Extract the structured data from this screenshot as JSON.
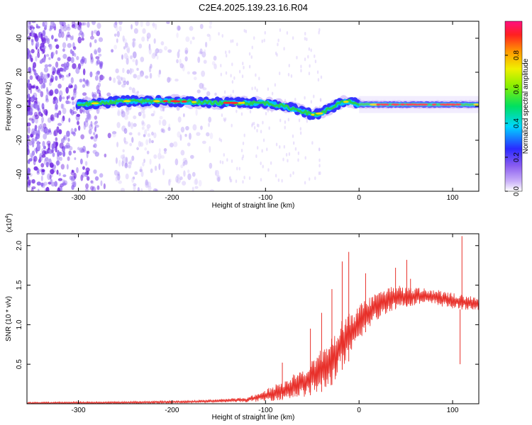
{
  "title": "C2E4.2025.139.23.16.R04",
  "colors": {
    "snr_line": "#e8302a",
    "track_core": "#ff2a2a",
    "track_mid": "#2ad24a",
    "track_outer": "#2a2aff",
    "noise": "#8a5cf0",
    "background": "#ffffff"
  },
  "chart_data": [
    {
      "type": "heatmap",
      "name": "spectrogram",
      "xlabel": "Height of straight line (km)",
      "ylabel": "Frequency (Hz)",
      "xlim": [
        -355,
        128
      ],
      "ylim": [
        -50,
        50
      ],
      "x_ticks": [
        -300,
        -200,
        -100,
        0,
        100
      ],
      "x_tick_labels": [
        "-300",
        "-200",
        "-100",
        "0",
        "100"
      ],
      "y_ticks": [
        -40,
        -20,
        0,
        20,
        40
      ],
      "y_tick_labels": [
        "-40",
        "-20",
        "0",
        "20",
        "40"
      ],
      "colorbar": {
        "label": "Normalized spectral amplitude",
        "range": [
          0,
          1
        ],
        "ticks": [
          0.0,
          0.2,
          0.4,
          0.6,
          0.8
        ],
        "tick_labels": [
          "0.0",
          "0.2",
          "0.4",
          "0.6",
          "0.8"
        ],
        "colormap": "rainbow"
      },
      "track": {
        "x": [
          -300,
          -250,
          -200,
          -150,
          -100,
          -80,
          -60,
          -50,
          -40,
          -30,
          -20,
          -10,
          0,
          20,
          40,
          60,
          80,
          100,
          128
        ],
        "frequency": [
          1,
          3,
          3,
          2,
          2,
          0,
          -3,
          -5,
          -4,
          -1,
          2,
          3,
          1,
          1,
          1,
          1,
          1,
          1,
          1
        ]
      },
      "noise_band_x": [
        -355,
        -150
      ],
      "grid": false
    },
    {
      "type": "line",
      "name": "snr",
      "xlabel": "Height of straight line (km)",
      "ylabel": "SNR (10 * v/v)",
      "multiplier_label": "(x10",
      "multiplier_exp": "4",
      "multiplier_close": ")",
      "xlim": [
        -355,
        128
      ],
      "ylim": [
        0,
        2.15
      ],
      "x_ticks": [
        -300,
        -200,
        -100,
        0,
        100
      ],
      "x_tick_labels": [
        "-300",
        "-200",
        "-100",
        "0",
        "100"
      ],
      "y_ticks": [
        0.5,
        1.0,
        1.5,
        2.0
      ],
      "y_tick_labels": [
        "0.5",
        "1.0",
        "1.5",
        "2.0"
      ],
      "envelope": {
        "x": [
          -355,
          -250,
          -180,
          -120,
          -100,
          -80,
          -60,
          -40,
          -30,
          -20,
          -10,
          0,
          10,
          20,
          30,
          40,
          60,
          80,
          100,
          128
        ],
        "lo": [
          0.0,
          0.0,
          0.01,
          0.02,
          0.03,
          0.05,
          0.08,
          0.15,
          0.22,
          0.4,
          0.55,
          0.8,
          0.95,
          1.05,
          1.15,
          1.2,
          1.25,
          1.25,
          1.2,
          1.18
        ],
        "hi": [
          0.02,
          0.03,
          0.04,
          0.08,
          0.18,
          0.3,
          0.45,
          0.7,
          0.85,
          1.05,
          1.15,
          1.25,
          1.35,
          1.42,
          1.48,
          1.5,
          1.47,
          1.45,
          1.4,
          1.35
        ]
      },
      "spikes": [
        {
          "x": -82,
          "y": 0.52
        },
        {
          "x": -52,
          "y": 0.95
        },
        {
          "x": -40,
          "y": 1.15
        },
        {
          "x": -29,
          "y": 1.45
        },
        {
          "x": -18,
          "y": 1.8
        },
        {
          "x": -11,
          "y": 1.92
        },
        {
          "x": 7,
          "y": 1.65
        },
        {
          "x": 39,
          "y": 1.72
        },
        {
          "x": 51,
          "y": 1.82
        },
        {
          "x": 55,
          "y": 1.58
        },
        {
          "x": 108,
          "y": 0.5
        },
        {
          "x": 110,
          "y": 2.12
        }
      ],
      "grid": false
    }
  ]
}
